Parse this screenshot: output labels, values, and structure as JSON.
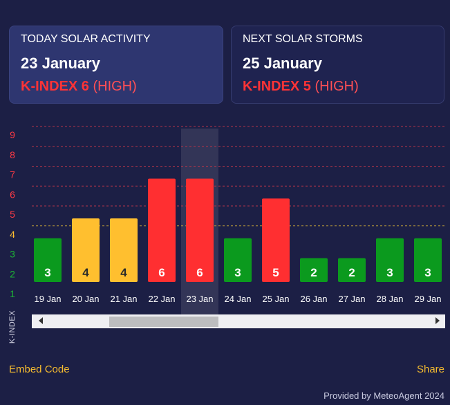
{
  "today": {
    "label": "TODAY SOLAR ACTIVITY",
    "date": "23 January",
    "kindex_text": "K-INDEX 6",
    "level": "(HIGH)"
  },
  "next": {
    "label": "NEXT SOLAR STORMS",
    "date": "25 January",
    "kindex_text": "K-INDEX 5",
    "level": "(HIGH)"
  },
  "chart_data": {
    "type": "bar",
    "title": "",
    "ylabel": "K-INDEX",
    "ylim": [
      1,
      9
    ],
    "y_ticks": [
      1,
      2,
      3,
      4,
      5,
      6,
      7,
      8,
      9
    ],
    "categories": [
      "19 Jan",
      "20 Jan",
      "21 Jan",
      "22 Jan",
      "23 Jan",
      "24 Jan",
      "25 Jan",
      "26 Jan",
      "27 Jan",
      "28 Jan",
      "29 Jan"
    ],
    "values": [
      3,
      4,
      4,
      6,
      6,
      3,
      5,
      2,
      2,
      3,
      3
    ],
    "highlighted": "23 Jan",
    "colors": {
      "low": "#0b9a1e",
      "medium": "#ffbf2f",
      "high": "#ff2f31",
      "tick_low": "#1db336",
      "tick_medium": "#ffbf2f",
      "tick_high": "#ff3a44"
    }
  },
  "scroll": {
    "left_icon": "arrow-left-icon",
    "right_icon": "arrow-right-icon"
  },
  "footer": {
    "embed": "Embed Code",
    "share": "Share",
    "provided": "Provided by MeteoAgent 2024"
  }
}
